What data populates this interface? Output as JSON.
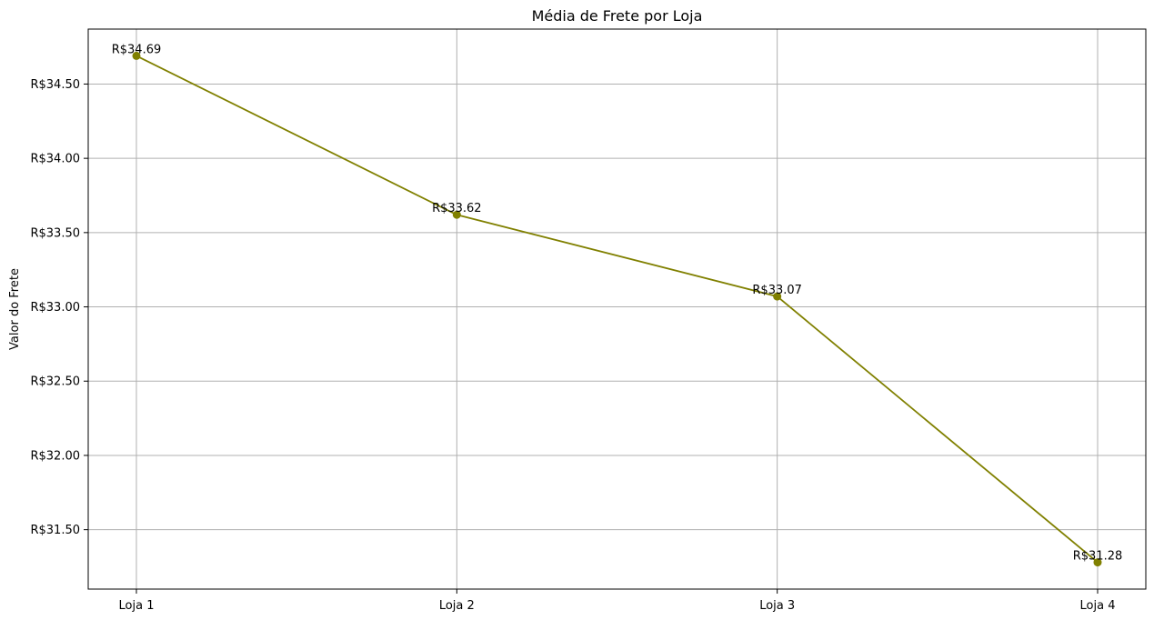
{
  "chart_data": {
    "type": "line",
    "title": "Média de Frete por Loja",
    "xlabel": "",
    "ylabel": "Valor do Frete",
    "categories": [
      "Loja 1",
      "Loja 2",
      "Loja 3",
      "Loja 4"
    ],
    "series": [
      {
        "values": [
          34.69,
          33.62,
          33.07,
          31.28
        ],
        "color": "#808000",
        "data_labels": [
          "R$34.69",
          "R$33.62",
          "R$33.07",
          "R$31.28"
        ]
      }
    ],
    "yticks": [
      31.5,
      32.0,
      32.5,
      33.0,
      33.5,
      34.0,
      34.5
    ],
    "ytick_labels": [
      "R$31.50",
      "R$32.00",
      "R$32.50",
      "R$33.00",
      "R$33.50",
      "R$34.00",
      "R$34.50"
    ],
    "ylim": [
      31.1,
      34.87
    ],
    "grid": true,
    "legend": "none"
  }
}
